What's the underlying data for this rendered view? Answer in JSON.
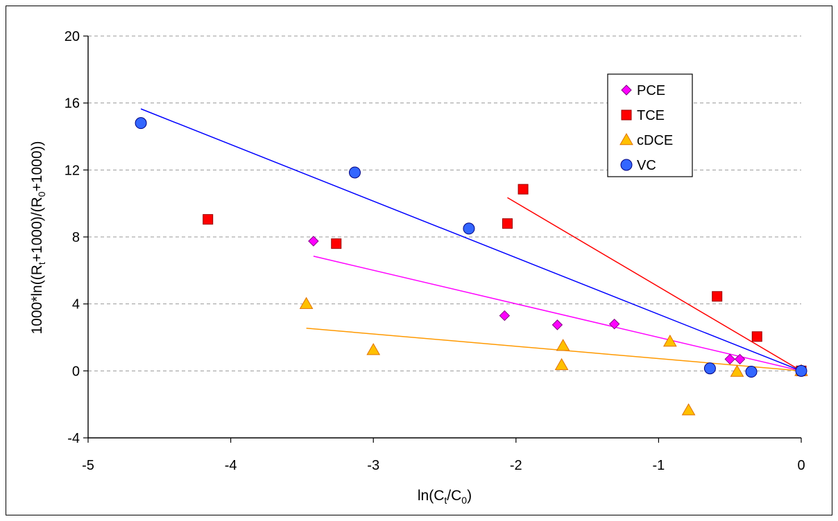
{
  "chart_data": {
    "type": "scatter",
    "title": "",
    "xlabel": {
      "base": "ln(C",
      "sub1": "t",
      "mid": "/C",
      "sub2": "0",
      "end": ")"
    },
    "ylabel": {
      "p1": "1000*ln((R",
      "s1": "t",
      "p2": "+1000)/(R",
      "s2": "0",
      "p3": "+1000))"
    },
    "xlim": [
      -5,
      0
    ],
    "ylim": [
      -4,
      20
    ],
    "xticks": [
      -5,
      -4,
      -3,
      -2,
      -1,
      0
    ],
    "yticks": [
      -4,
      0,
      4,
      8,
      12,
      16,
      20
    ],
    "grid": "horizontal-dashed",
    "legend_position": "top-right",
    "series": [
      {
        "name": "PCE",
        "marker": "diamond",
        "color": "#FF00FF",
        "points": [
          [
            -3.42,
            7.75
          ],
          [
            -2.08,
            3.3
          ],
          [
            -1.71,
            2.75
          ],
          [
            -1.31,
            2.8
          ],
          [
            -0.5,
            0.7
          ],
          [
            -0.43,
            0.7
          ],
          [
            0,
            0
          ]
        ],
        "trendline": {
          "x": [
            -3.42,
            0
          ],
          "y": [
            6.85,
            0
          ],
          "color": "#FF00FF"
        }
      },
      {
        "name": "TCE",
        "marker": "square",
        "color": "#FF0000",
        "points": [
          [
            -4.16,
            9.05
          ],
          [
            -3.26,
            7.6
          ],
          [
            -2.06,
            8.8
          ],
          [
            -1.95,
            10.85
          ],
          [
            -0.59,
            4.45
          ],
          [
            -0.31,
            2.05
          ],
          [
            0,
            0
          ]
        ],
        "trendline": {
          "x": [
            -2.06,
            0
          ],
          "y": [
            10.35,
            0
          ],
          "color": "#FF0000"
        }
      },
      {
        "name": "cDCE",
        "marker": "triangle",
        "color": "#FFC000",
        "stroke": "#E07000",
        "points": [
          [
            -3.47,
            4.0
          ],
          [
            -3.0,
            1.25
          ],
          [
            -1.67,
            1.5
          ],
          [
            -1.68,
            0.35
          ],
          [
            -0.92,
            1.75
          ],
          [
            -0.79,
            -2.35
          ],
          [
            -0.45,
            -0.05
          ],
          [
            0,
            0
          ]
        ],
        "trendline": {
          "x": [
            -3.47,
            0
          ],
          "y": [
            2.55,
            0
          ],
          "color": "#FF9900"
        }
      },
      {
        "name": "VC",
        "marker": "circle",
        "color": "#3366FF",
        "points": [
          [
            -4.63,
            14.8
          ],
          [
            -3.13,
            11.85
          ],
          [
            -2.33,
            8.5
          ],
          [
            -0.64,
            0.15
          ],
          [
            -0.35,
            -0.05
          ],
          [
            0,
            0
          ]
        ],
        "trendline": {
          "x": [
            -4.63,
            0
          ],
          "y": [
            15.65,
            0
          ],
          "color": "#0000FF"
        }
      }
    ]
  }
}
